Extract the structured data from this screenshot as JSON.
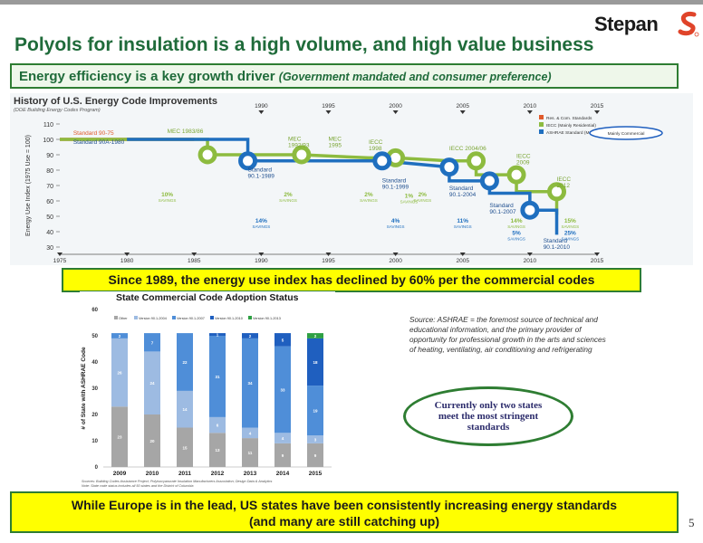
{
  "header": {
    "logo_text": "Stepan",
    "title": "Polyols for insulation is a high volume, and high value business",
    "subtitle_main": "Energy efficiency is a key growth driver",
    "subtitle_note": "(Government mandated and consumer preference)"
  },
  "colors": {
    "title_green": "#1f6b3a",
    "callout_yellow": "#ffff00",
    "red_series": "#e05a2b",
    "green_series": "#8dbb3f",
    "blue_series": "#1f6fbf",
    "other_gray": "#a6a6a6",
    "v2004_lightblue": "#9dbbe2",
    "v2007_blue": "#4f8ed8",
    "v2010_darkblue": "#1f5fbf",
    "v2013_green": "#2ea043"
  },
  "callouts": {
    "decline": "Since 1989, the energy use index has declined by 60% per the commercial codes",
    "europe_line1": "While Europe is in the lead, US states have been consistently increasing energy standards",
    "europe_line2": "(and many are still catching up)",
    "two_states": "Currently only two states meet the most stringent standards"
  },
  "source_note": "Source: ASHRAE = the foremost source of technical and educational information, and the primary provider of opportunity for professional growth in the arts and sciences of heating, ventilating, air conditioning and refrigerating",
  "page_number": "5",
  "chart_data": [
    {
      "type": "line",
      "title": "History of U.S. Energy Code Improvements",
      "subtitle": "(DOE Building Energy Codes Program)",
      "ylabel": "Energy Use Index (1975 Use = 100)",
      "ylim": [
        30,
        110
      ],
      "yticks": [
        30,
        40,
        50,
        60,
        70,
        80,
        90,
        100,
        110
      ],
      "xlim": [
        1975,
        2015
      ],
      "xticks": [
        1975,
        1980,
        1985,
        1990,
        1995,
        2000,
        2005,
        2010,
        2015
      ],
      "top_markers": [
        "1990",
        "1995",
        "2000",
        "2005",
        "2010",
        "2015"
      ],
      "legend": [
        "Res. & Com. Standards",
        "IECC (Mainly Residential)",
        "ASHRAE Standard (Mainly Commercial)"
      ],
      "legend_placement": "top-right",
      "highlighted_legend_text": "Mainly Commercial",
      "series": [
        {
          "name": "Res. & Com. Standards",
          "color": "#e05a2b",
          "points": [
            [
              1975,
              100
            ],
            [
              1985,
              100
            ]
          ]
        },
        {
          "name": "IECC (Mainly Residential)",
          "color": "#8dbb3f",
          "points": [
            [
              1975,
              100
            ],
            [
              1986,
              100
            ],
            [
              1986,
              90
            ],
            [
              1993,
              90
            ],
            [
              1998,
              88
            ],
            [
              2000,
              88
            ],
            [
              2004,
              86
            ],
            [
              2006,
              86
            ],
            [
              2006,
              77
            ],
            [
              2009,
              77
            ],
            [
              2009,
              66
            ],
            [
              2012,
              66
            ],
            [
              2012,
              51
            ]
          ]
        },
        {
          "name": "ASHRAE Standard (Mainly Commercial)",
          "color": "#1f6fbf",
          "points": [
            [
              1980,
              100
            ],
            [
              1989,
              100
            ],
            [
              1989,
              86
            ],
            [
              1999,
              86
            ],
            [
              2004,
              82
            ],
            [
              2004,
              73
            ],
            [
              2007,
              73
            ],
            [
              2007,
              65
            ],
            [
              2010,
              65
            ],
            [
              2010,
              54
            ],
            [
              2012,
              54
            ],
            [
              2012,
              38
            ]
          ]
        }
      ],
      "labels": [
        {
          "text": "Standard 90-75",
          "x": 1976,
          "y": 103
        },
        {
          "text": "Standard 90A-1980",
          "x": 1976,
          "y": 97
        },
        {
          "text": "MEC 1983/86",
          "x": 1983,
          "y": 104
        },
        {
          "text": "MEC 1992/93",
          "x": 1992,
          "y": 99
        },
        {
          "text": "MEC 1995",
          "x": 1995,
          "y": 99
        },
        {
          "text": "IECC 1998",
          "x": 1998,
          "y": 97
        },
        {
          "text": "IECC 2004/06",
          "x": 2004,
          "y": 93
        },
        {
          "text": "IECC 2009",
          "x": 2009,
          "y": 88
        },
        {
          "text": "IECC 2012",
          "x": 2012,
          "y": 73
        },
        {
          "text": "Standard 90.1-1989",
          "x": 1989,
          "y": 79
        },
        {
          "text": "Standard 90.1-1999",
          "x": 1999,
          "y": 72
        },
        {
          "text": "Standard 90.1-2004",
          "x": 2004,
          "y": 67
        },
        {
          "text": "Standard 90.1-2007",
          "x": 2007,
          "y": 56
        },
        {
          "text": "Standard 90.1-2010",
          "x": 2011,
          "y": 33
        }
      ],
      "savings": [
        {
          "pct": "10%",
          "x": 1983,
          "y": 63,
          "color": "#8dbb3f"
        },
        {
          "pct": "14%",
          "x": 1990,
          "y": 46,
          "color": "#1f6fbf"
        },
        {
          "pct": "2%",
          "x": 1992,
          "y": 63,
          "color": "#8dbb3f"
        },
        {
          "pct": "2%",
          "x": 1998,
          "y": 63,
          "color": "#8dbb3f"
        },
        {
          "pct": "1%",
          "x": 2001,
          "y": 62,
          "color": "#8dbb3f"
        },
        {
          "pct": "2%",
          "x": 2002,
          "y": 63,
          "color": "#8dbb3f"
        },
        {
          "pct": "4%",
          "x": 2000,
          "y": 46,
          "color": "#1f6fbf"
        },
        {
          "pct": "11%",
          "x": 2005,
          "y": 46,
          "color": "#1f6fbf"
        },
        {
          "pct": "14%",
          "x": 2009,
          "y": 46,
          "color": "#8dbb3f"
        },
        {
          "pct": "5%",
          "x": 2009,
          "y": 38,
          "color": "#1f6fbf"
        },
        {
          "pct": "15%",
          "x": 2013,
          "y": 46,
          "color": "#8dbb3f"
        },
        {
          "pct": "25%",
          "x": 2013,
          "y": 38,
          "color": "#1f6fbf"
        }
      ],
      "savings_word": "SAVINGS"
    },
    {
      "type": "bar",
      "stacked": true,
      "title": "State Commercial Code Adoption Status",
      "ylabel": "# of State with ASHRAE Code",
      "ylim": [
        0,
        60
      ],
      "yticks": [
        0,
        10,
        20,
        30,
        40,
        50,
        60
      ],
      "categories": [
        "2009",
        "2010",
        "2011",
        "2012",
        "2013",
        "2014",
        "2015"
      ],
      "legend_placement": "top",
      "series": [
        {
          "name": "Other",
          "color": "#a6a6a6",
          "values": [
            23,
            20,
            15,
            13,
            11,
            9,
            9
          ]
        },
        {
          "name": "Version 90.1-2004",
          "color": "#9dbbe2",
          "values": [
            26,
            24,
            14,
            6,
            4,
            4,
            3
          ]
        },
        {
          "name": "Version 90.1-2007",
          "color": "#4f8ed8",
          "values": [
            2,
            7,
            22,
            31,
            34,
            33,
            19
          ]
        },
        {
          "name": "Version 90.1-2010",
          "color": "#1f5fbf",
          "values": [
            0,
            0,
            0,
            1,
            2,
            5,
            18
          ]
        },
        {
          "name": "Version 90.1-2013",
          "color": "#2ea043",
          "values": [
            0,
            0,
            0,
            0,
            0,
            0,
            2
          ]
        }
      ],
      "source": "Sources: Building Codes Assistance Project; Polyisocyanurate Insulation Manufacturers Association; Design Data & Analytics",
      "note": "Note: State code status includes all 50 states and the District of Columbia"
    }
  ]
}
